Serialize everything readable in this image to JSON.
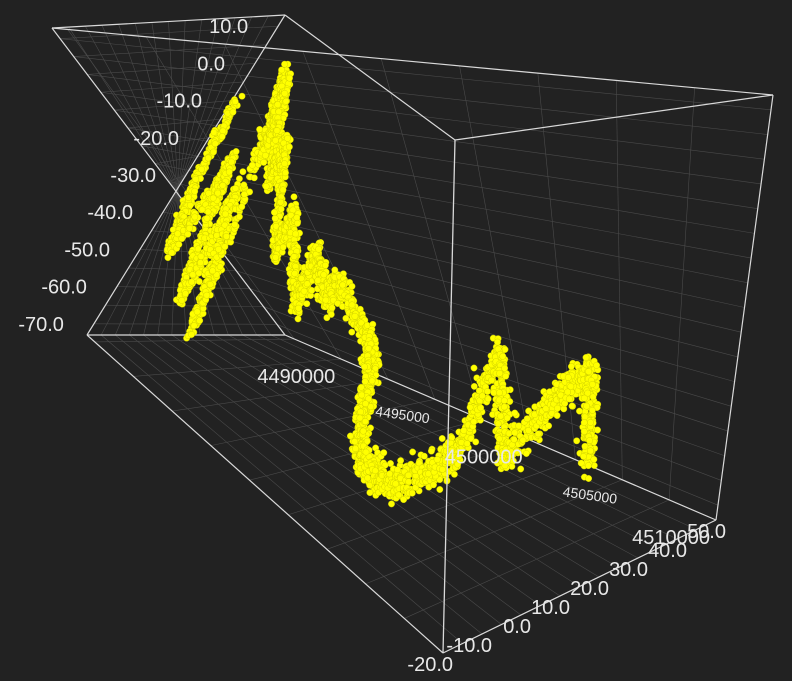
{
  "colors": {
    "background": "#222222",
    "box_edge": "#d9d9d9",
    "grid": "#4a4a4a",
    "points": "#ffff00",
    "tick_text": "#e8e8e8"
  },
  "chart_data": {
    "type": "scatter",
    "subtype": "3d-scatter-random-walk",
    "title": "",
    "grid": true,
    "axes": {
      "x": {
        "label": "",
        "range": [
          4487000,
          4510000
        ],
        "ticks": [
          "4490000",
          "4495000",
          "4500000",
          "4505000",
          "4510000"
        ]
      },
      "y": {
        "label": "",
        "range": [
          -20,
          50
        ],
        "ticks": [
          "-20.0",
          "-10.0",
          "0.0",
          "10.0",
          "20.0",
          "30.0",
          "40.0",
          "50.0"
        ]
      },
      "z": {
        "label": "",
        "range": [
          -73,
          13
        ],
        "ticks": [
          "10.0",
          "0.0",
          "-10.0",
          "-20.0",
          "-30.0",
          "-40.0",
          "-50.0",
          "-60.0",
          "-70.0"
        ]
      }
    },
    "series": [
      {
        "color": "#ffff00",
        "marker": "circle",
        "path_waypoints": [
          {
            "x": 4487500,
            "y": -18,
            "z": -10
          },
          {
            "x": 4487800,
            "y": -19,
            "z": -30
          },
          {
            "x": 4488400,
            "y": -17,
            "z": -45
          },
          {
            "x": 4489500,
            "y": -14,
            "z": -20
          },
          {
            "x": 4489700,
            "y": -12,
            "z": -55
          },
          {
            "x": 4490500,
            "y": -10,
            "z": -25
          },
          {
            "x": 4490800,
            "y": -11,
            "z": -60
          },
          {
            "x": 4491300,
            "y": -8,
            "z": 5
          },
          {
            "x": 4491600,
            "y": -6,
            "z": -15
          },
          {
            "x": 4492000,
            "y": -4,
            "z": 3
          },
          {
            "x": 4492400,
            "y": -5,
            "z": -20
          },
          {
            "x": 4492900,
            "y": -2,
            "z": -10
          },
          {
            "x": 4493400,
            "y": 0,
            "z": -35
          },
          {
            "x": 4494000,
            "y": 2,
            "z": -25
          },
          {
            "x": 4494800,
            "y": 3,
            "z": -45
          },
          {
            "x": 4495300,
            "y": 6,
            "z": -32
          },
          {
            "x": 4495800,
            "y": 8,
            "z": -40
          },
          {
            "x": 4496300,
            "y": 12,
            "z": -38
          },
          {
            "x": 4497300,
            "y": 18,
            "z": -50
          },
          {
            "x": 4498100,
            "y": 12,
            "z": -55
          },
          {
            "x": 4498900,
            "y": 5,
            "z": -62
          },
          {
            "x": 4499600,
            "y": 3,
            "z": -68
          },
          {
            "x": 4500300,
            "y": 8,
            "z": -72
          },
          {
            "x": 4501000,
            "y": 15,
            "z": -70
          },
          {
            "x": 4501600,
            "y": 22,
            "z": -65
          },
          {
            "x": 4502100,
            "y": 32,
            "z": -45
          },
          {
            "x": 4502800,
            "y": 28,
            "z": -66
          },
          {
            "x": 4503700,
            "y": 38,
            "z": -55
          },
          {
            "x": 4504600,
            "y": 44,
            "z": -48
          },
          {
            "x": 4505000,
            "y": 40,
            "z": -67
          }
        ]
      }
    ]
  }
}
